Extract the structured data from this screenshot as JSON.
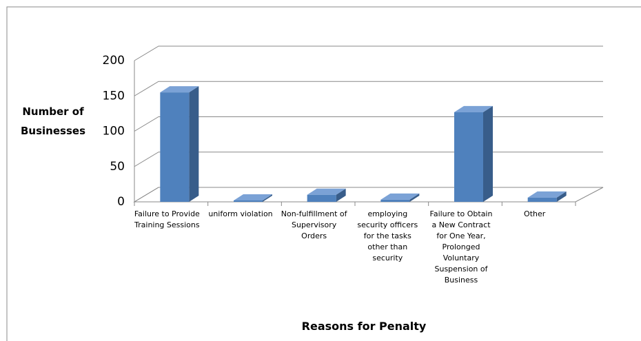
{
  "chart_data": {
    "type": "bar3d",
    "y_label": "Number of Businesses",
    "x_label": "Reasons for Penalty",
    "categories": [
      "Failure to Provide Training Sessions",
      "uniform violation",
      "Non-fulfillment of Supervisory Orders",
      "employing security officers for the tasks other than security",
      "Failure to Obtain a New Contract for One Year, Prolonged Voluntary Suspension of Business",
      "Other"
    ],
    "values": [
      155,
      2,
      10,
      3,
      127,
      6
    ],
    "color": "#4f81bd",
    "ylim": [
      0,
      200
    ],
    "yticks": [
      0,
      50,
      100,
      150,
      200
    ],
    "grid": true
  }
}
